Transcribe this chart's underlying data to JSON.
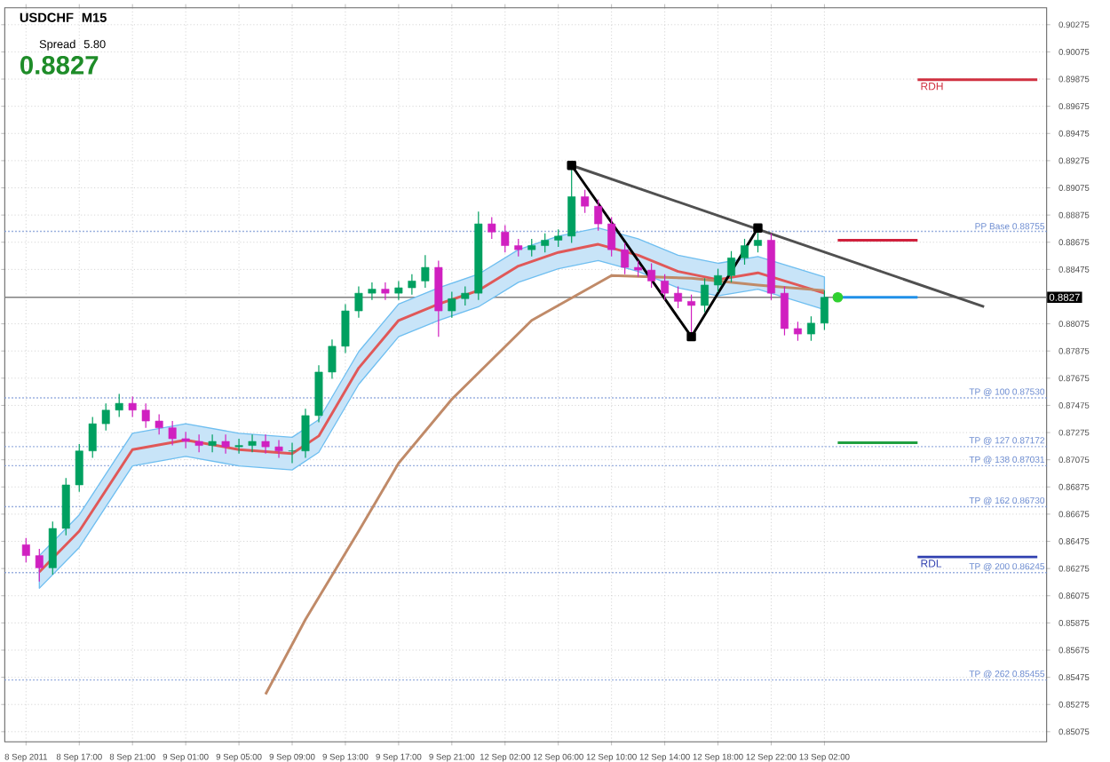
{
  "chart_data": {
    "type": "candlestick",
    "categories": [
      "8 Sep 2011",
      null,
      null,
      null,
      "8 Sep 17:00",
      null,
      null,
      null,
      "8 Sep 21:00",
      null,
      null,
      null,
      "9 Sep 01:00",
      null,
      null,
      null,
      "9 Sep 05:00",
      null,
      null,
      null,
      "9 Sep 09:00",
      null,
      null,
      null,
      "9 Sep 13:00",
      null,
      null,
      null,
      "9 Sep 17:00",
      null,
      null,
      null,
      "9 Sep 21:00",
      null,
      null,
      null,
      "12 Sep 02:00",
      null,
      null,
      null,
      "12 Sep 06:00",
      null,
      null,
      null,
      "12 Sep 10:00",
      null,
      null,
      null,
      "12 Sep 14:00",
      null,
      null,
      null,
      "12 Sep 18:00",
      null,
      null,
      null,
      "12 Sep 22:00",
      null,
      null,
      null,
      "13 Sep 02:00",
      null,
      null,
      null,
      null,
      null,
      null,
      null,
      null,
      null,
      null,
      null,
      null,
      null,
      null,
      null,
      null
    ],
    "ohlc": [
      [
        0.8645,
        0.865,
        0.8632,
        0.8637
      ],
      [
        0.8637,
        0.8642,
        0.8618,
        0.8628
      ],
      [
        0.8628,
        0.8662,
        0.8623,
        0.8657
      ],
      [
        0.8657,
        0.8694,
        0.8652,
        0.8689
      ],
      [
        0.8689,
        0.8719,
        0.8684,
        0.8714
      ],
      [
        0.8714,
        0.8739,
        0.8709,
        0.8734
      ],
      [
        0.8734,
        0.8749,
        0.8729,
        0.8744
      ],
      [
        0.8744,
        0.8756,
        0.8739,
        0.8749
      ],
      [
        0.8749,
        0.8754,
        0.8739,
        0.8744
      ],
      [
        0.8744,
        0.8749,
        0.8731,
        0.8736
      ],
      [
        0.8736,
        0.8741,
        0.8726,
        0.8731
      ],
      [
        0.8731,
        0.8736,
        0.8718,
        0.8723
      ],
      [
        0.8723,
        0.8728,
        0.8716,
        0.8721
      ],
      [
        0.8721,
        0.8726,
        0.8713,
        0.8718
      ],
      [
        0.8718,
        0.8726,
        0.8713,
        0.8721
      ],
      [
        0.8721,
        0.8726,
        0.8712,
        0.8717
      ],
      [
        0.8717,
        0.8723,
        0.8712,
        0.8718
      ],
      [
        0.8718,
        0.8726,
        0.8713,
        0.8721
      ],
      [
        0.8721,
        0.8726,
        0.8712,
        0.8717
      ],
      [
        0.8717,
        0.8722,
        0.8709,
        0.8714
      ],
      [
        0.8714,
        0.872,
        0.8705,
        0.8714
      ],
      [
        0.8714,
        0.8745,
        0.8709,
        0.874
      ],
      [
        0.874,
        0.8777,
        0.8735,
        0.8772
      ],
      [
        0.8772,
        0.8796,
        0.8767,
        0.8791
      ],
      [
        0.8791,
        0.8822,
        0.8786,
        0.8817
      ],
      [
        0.8817,
        0.8835,
        0.8812,
        0.883
      ],
      [
        0.883,
        0.8838,
        0.8825,
        0.8833
      ],
      [
        0.8833,
        0.8838,
        0.8825,
        0.883
      ],
      [
        0.883,
        0.8839,
        0.8825,
        0.8834
      ],
      [
        0.8834,
        0.8844,
        0.8829,
        0.8839
      ],
      [
        0.8839,
        0.8858,
        0.8834,
        0.8849
      ],
      [
        0.8849,
        0.8854,
        0.8798,
        0.8817
      ],
      [
        0.8817,
        0.8831,
        0.8812,
        0.8826
      ],
      [
        0.8826,
        0.8835,
        0.8821,
        0.883
      ],
      [
        0.883,
        0.889,
        0.8825,
        0.8881
      ],
      [
        0.8881,
        0.8886,
        0.887,
        0.8875
      ],
      [
        0.8875,
        0.888,
        0.886,
        0.8865
      ],
      [
        0.8865,
        0.887,
        0.8857,
        0.8862
      ],
      [
        0.8862,
        0.887,
        0.8857,
        0.8865
      ],
      [
        0.8865,
        0.8874,
        0.886,
        0.8869
      ],
      [
        0.8869,
        0.8877,
        0.8864,
        0.8872
      ],
      [
        0.8872,
        0.8924,
        0.8867,
        0.8901
      ],
      [
        0.8901,
        0.8906,
        0.8889,
        0.8894
      ],
      [
        0.8894,
        0.8899,
        0.8876,
        0.8881
      ],
      [
        0.8881,
        0.8886,
        0.8857,
        0.8862
      ],
      [
        0.8862,
        0.8867,
        0.8844,
        0.8849
      ],
      [
        0.8849,
        0.8854,
        0.8842,
        0.8847
      ],
      [
        0.8847,
        0.8852,
        0.8834,
        0.8839
      ],
      [
        0.8839,
        0.8844,
        0.8825,
        0.883
      ],
      [
        0.883,
        0.8835,
        0.8819,
        0.8824
      ],
      [
        0.8824,
        0.8829,
        0.8798,
        0.8821
      ],
      [
        0.8821,
        0.8841,
        0.8816,
        0.8836
      ],
      [
        0.8836,
        0.8848,
        0.8831,
        0.8843
      ],
      [
        0.8843,
        0.8861,
        0.8838,
        0.8856
      ],
      [
        0.8856,
        0.887,
        0.8851,
        0.8865
      ],
      [
        0.8865,
        0.8878,
        0.886,
        0.8869
      ],
      [
        0.8869,
        0.8874,
        0.8825,
        0.883
      ],
      [
        0.883,
        0.8835,
        0.8799,
        0.8804
      ],
      [
        0.8804,
        0.8809,
        0.8795,
        0.88
      ],
      [
        0.88,
        0.8813,
        0.8795,
        0.8808
      ],
      [
        0.8808,
        0.8832,
        0.8803,
        0.8827
      ],
      null,
      null,
      null,
      null,
      null,
      null,
      null,
      null,
      null,
      null,
      null,
      null,
      null,
      null,
      null,
      null
    ],
    "colors": [
      "#d020c0",
      "#d020c0",
      "#00a060",
      "#00a060",
      "#00a060",
      "#00a060",
      "#00a060",
      "#00a060",
      "#d020c0",
      "#d020c0",
      "#d020c0",
      "#d020c0",
      "#d020c0",
      "#d020c0",
      "#00a060",
      "#d020c0",
      "#00a060",
      "#00a060",
      "#d020c0",
      "#d020c0",
      "#00a060",
      "#00a060",
      "#00a060",
      "#00a060",
      "#00a060",
      "#00a060",
      "#00a060",
      "#d020c0",
      "#00a060",
      "#00a060",
      "#00a060",
      "#d020c0",
      "#00a060",
      "#00a060",
      "#00a060",
      "#d020c0",
      "#d020c0",
      "#d020c0",
      "#00a060",
      "#00a060",
      "#00a060",
      "#00a060",
      "#d020c0",
      "#d020c0",
      "#d020c0",
      "#d020c0",
      "#d020c0",
      "#d020c0",
      "#d020c0",
      "#d020c0",
      "#d020c0",
      "#00a060",
      "#00a060",
      "#00a060",
      "#00a060",
      "#00a060",
      "#d020c0",
      "#d020c0",
      "#d020c0",
      "#00a060",
      "#00a060",
      null,
      null,
      null,
      null,
      null,
      null,
      null,
      null,
      null,
      null,
      null,
      null,
      null,
      null,
      null,
      null
    ],
    "series": [
      {
        "type": "line",
        "color": "#c08a68",
        "values": [
          null,
          null,
          null,
          null,
          null,
          null,
          null,
          null,
          null,
          null,
          null,
          null,
          null,
          null,
          null,
          null,
          null,
          null,
          0.8535,
          null,
          null,
          0.859,
          null,
          null,
          null,
          0.8655,
          null,
          null,
          0.8705,
          null,
          null,
          null,
          0.8752,
          null,
          null,
          null,
          null,
          null,
          0.881,
          null,
          null,
          null,
          null,
          null,
          0.8843,
          null,
          null,
          null,
          null,
          null,
          0.8841,
          null,
          null,
          null,
          null,
          0.8836,
          null,
          null,
          null,
          null,
          0.8832,
          null,
          null,
          null,
          null,
          null,
          null,
          null,
          null,
          null,
          null,
          null,
          null,
          null,
          null,
          null,
          null
        ]
      },
      {
        "type": "line",
        "color": "#e05858",
        "values": [
          null,
          0.8625,
          null,
          null,
          0.8655,
          null,
          null,
          null,
          0.8715,
          null,
          null,
          null,
          0.8722,
          null,
          null,
          null,
          0.8715,
          null,
          null,
          null,
          0.8712,
          null,
          0.8725,
          null,
          null,
          0.8775,
          null,
          null,
          0.881,
          null,
          null,
          0.8822,
          null,
          null,
          0.8832,
          null,
          null,
          0.885,
          null,
          null,
          0.886,
          null,
          null,
          0.8866,
          null,
          null,
          0.8858,
          null,
          null,
          0.8846,
          null,
          null,
          0.884,
          null,
          null,
          0.8845,
          null,
          null,
          0.8836,
          null,
          0.883,
          null,
          null,
          null,
          null,
          null,
          null,
          null,
          null,
          null,
          null,
          null,
          null,
          null,
          null,
          null,
          null
        ],
        "lower": [
          null,
          0.8613,
          null,
          null,
          0.8643,
          null,
          null,
          null,
          0.8703,
          null,
          null,
          null,
          0.871,
          null,
          null,
          null,
          0.8703,
          null,
          null,
          null,
          0.87,
          null,
          0.8713,
          null,
          null,
          0.8763,
          null,
          null,
          0.8798,
          null,
          null,
          0.881,
          null,
          null,
          0.882,
          null,
          null,
          0.8838,
          null,
          null,
          0.8848,
          null,
          null,
          0.8854,
          null,
          null,
          0.8846,
          null,
          null,
          0.8834,
          null,
          null,
          0.8828,
          null,
          null,
          0.8833,
          null,
          null,
          0.8824,
          null,
          0.8818,
          null,
          null,
          null,
          null,
          null,
          null,
          null,
          null,
          null,
          null,
          null,
          null,
          null,
          null,
          null,
          null
        ],
        "upper": [
          null,
          0.8637,
          null,
          null,
          0.8667,
          null,
          null,
          null,
          0.8727,
          null,
          null,
          null,
          0.8734,
          null,
          null,
          null,
          0.8727,
          null,
          null,
          null,
          0.8724,
          null,
          0.8737,
          null,
          null,
          0.8787,
          null,
          null,
          0.8822,
          null,
          null,
          0.8834,
          null,
          null,
          0.8844,
          null,
          null,
          0.8862,
          null,
          null,
          0.8872,
          null,
          null,
          0.8878,
          null,
          null,
          0.887,
          null,
          null,
          0.8858,
          null,
          null,
          0.8852,
          null,
          null,
          0.8857,
          null,
          null,
          0.8848,
          null,
          0.8842,
          null,
          null,
          null,
          null,
          null,
          null,
          null,
          null,
          null,
          null,
          null,
          null,
          null,
          null,
          null,
          null
        ]
      },
      {
        "type": "line",
        "color": "#505050",
        "values": [
          null,
          null,
          null,
          null,
          null,
          null,
          null,
          null,
          null,
          null,
          null,
          null,
          null,
          null,
          null,
          null,
          null,
          null,
          null,
          null,
          null,
          null,
          null,
          null,
          null,
          null,
          null,
          null,
          null,
          null,
          null,
          null,
          null,
          null,
          null,
          null,
          null,
          null,
          null,
          null,
          null,
          0.8924,
          null,
          null,
          null,
          null,
          null,
          null,
          null,
          null,
          null,
          null,
          null,
          null,
          null,
          null,
          null,
          null,
          null,
          null,
          null,
          null,
          null,
          null,
          null,
          null,
          null,
          null,
          null,
          null,
          null,
          null,
          0.882,
          null,
          null,
          null,
          null
        ]
      },
      {
        "type": "line",
        "color": "#000000",
        "marker": "square",
        "values": [
          null,
          null,
          null,
          null,
          null,
          null,
          null,
          null,
          null,
          null,
          null,
          null,
          null,
          null,
          null,
          null,
          null,
          null,
          null,
          null,
          null,
          null,
          null,
          null,
          null,
          null,
          null,
          null,
          null,
          null,
          null,
          null,
          null,
          null,
          null,
          null,
          null,
          null,
          null,
          null,
          null,
          0.8924,
          null,
          null,
          null,
          null,
          null,
          null,
          null,
          null,
          0.8798,
          null,
          null,
          null,
          null,
          0.8878,
          null,
          null,
          null,
          null,
          null,
          null,
          null,
          null,
          null,
          null,
          null,
          null,
          null,
          null,
          null,
          null,
          null,
          null,
          null,
          null,
          null
        ]
      },
      {
        "type": "line",
        "color": "#d0203c",
        "values": [
          null,
          null,
          null,
          null,
          null,
          null,
          null,
          null,
          null,
          null,
          null,
          null,
          null,
          null,
          null,
          null,
          null,
          null,
          null,
          null,
          null,
          null,
          null,
          null,
          null,
          null,
          null,
          null,
          null,
          null,
          null,
          null,
          null,
          null,
          null,
          null,
          null,
          null,
          null,
          null,
          null,
          null,
          null,
          null,
          null,
          null,
          null,
          null,
          null,
          null,
          null,
          null,
          null,
          null,
          null,
          null,
          null,
          null,
          null,
          null,
          null,
          0.8869,
          null,
          null,
          null,
          null,
          null,
          0.8869,
          null,
          null,
          null,
          null,
          null,
          null,
          null,
          null,
          null
        ]
      },
      {
        "type": "line",
        "color": "#2090e8",
        "values": [
          null,
          null,
          null,
          null,
          null,
          null,
          null,
          null,
          null,
          null,
          null,
          null,
          null,
          null,
          null,
          null,
          null,
          null,
          null,
          null,
          null,
          null,
          null,
          null,
          null,
          null,
          null,
          null,
          null,
          null,
          null,
          null,
          null,
          null,
          null,
          null,
          null,
          null,
          null,
          null,
          null,
          null,
          null,
          null,
          null,
          null,
          null,
          null,
          null,
          null,
          null,
          null,
          null,
          null,
          null,
          null,
          null,
          null,
          null,
          null,
          null,
          0.8827,
          null,
          null,
          null,
          null,
          null,
          0.8827,
          null,
          null,
          null,
          null,
          null,
          null,
          null,
          null,
          null
        ]
      },
      {
        "type": "line",
        "color": "#20a040",
        "values": [
          null,
          null,
          null,
          null,
          null,
          null,
          null,
          null,
          null,
          null,
          null,
          null,
          null,
          null,
          null,
          null,
          null,
          null,
          null,
          null,
          null,
          null,
          null,
          null,
          null,
          null,
          null,
          null,
          null,
          null,
          null,
          null,
          null,
          null,
          null,
          null,
          null,
          null,
          null,
          null,
          null,
          null,
          null,
          null,
          null,
          null,
          null,
          null,
          null,
          null,
          null,
          null,
          null,
          null,
          null,
          null,
          null,
          null,
          null,
          null,
          null,
          0.872,
          null,
          null,
          null,
          null,
          null,
          0.872,
          null,
          null,
          null,
          null,
          null,
          null,
          null,
          null,
          null
        ]
      },
      {
        "type": "scatter",
        "color": "#30d030",
        "marker": "circle",
        "values": [
          null,
          null,
          null,
          null,
          null,
          null,
          null,
          null,
          null,
          null,
          null,
          null,
          null,
          null,
          null,
          null,
          null,
          null,
          null,
          null,
          null,
          null,
          null,
          null,
          null,
          null,
          null,
          null,
          null,
          null,
          null,
          null,
          null,
          null,
          null,
          null,
          null,
          null,
          null,
          null,
          null,
          null,
          null,
          null,
          null,
          null,
          null,
          null,
          null,
          null,
          null,
          null,
          null,
          null,
          null,
          null,
          null,
          null,
          null,
          null,
          null,
          0.8827,
          null,
          null,
          null,
          null,
          null,
          null,
          null,
          null,
          null,
          null,
          null,
          null,
          null,
          null,
          null
        ]
      },
      {
        "type": "line",
        "name": "RDH",
        "color": "#d03040",
        "values": [
          null,
          null,
          null,
          null,
          null,
          null,
          null,
          null,
          null,
          null,
          null,
          null,
          null,
          null,
          null,
          null,
          null,
          null,
          null,
          null,
          null,
          null,
          null,
          null,
          null,
          null,
          null,
          null,
          null,
          null,
          null,
          null,
          null,
          null,
          null,
          null,
          null,
          null,
          null,
          null,
          null,
          null,
          null,
          null,
          null,
          null,
          null,
          null,
          null,
          null,
          null,
          null,
          null,
          null,
          null,
          null,
          null,
          null,
          null,
          null,
          null,
          null,
          null,
          null,
          null,
          null,
          null,
          0.8987,
          null,
          null,
          null,
          null,
          null,
          null,
          null,
          null,
          0.8987
        ]
      },
      {
        "type": "line",
        "name": "RDL",
        "color": "#3040b0",
        "values": [
          null,
          null,
          null,
          null,
          null,
          null,
          null,
          null,
          null,
          null,
          null,
          null,
          null,
          null,
          null,
          null,
          null,
          null,
          null,
          null,
          null,
          null,
          null,
          null,
          null,
          null,
          null,
          null,
          null,
          null,
          null,
          null,
          null,
          null,
          null,
          null,
          null,
          null,
          null,
          null,
          null,
          null,
          null,
          null,
          null,
          null,
          null,
          null,
          null,
          null,
          null,
          null,
          null,
          null,
          null,
          null,
          null,
          null,
          null,
          null,
          null,
          null,
          null,
          null,
          null,
          null,
          null,
          0.8636,
          null,
          null,
          null,
          null,
          null,
          null,
          null,
          null,
          0.8636
        ]
      }
    ],
    "ylim": [
      0.85,
      0.904
    ],
    "yticks": [
      0.85075,
      0.85275,
      0.85475,
      0.85675,
      0.85875,
      0.86075,
      0.86275,
      0.86475,
      0.86675,
      0.86875,
      0.87075,
      0.87275,
      0.87475,
      0.87675,
      0.87875,
      0.88075,
      0.88475,
      0.88675,
      0.88875,
      0.89075,
      0.89275,
      0.89475,
      0.89675,
      0.89875,
      0.90075,
      0.90275
    ],
    "grid": true,
    "ref_lines": [
      {
        "axis": "y",
        "value": 0.8827,
        "color": "#808080",
        "line_style": "solid"
      },
      {
        "axis": "y",
        "value": 0.88755,
        "label": "PP Base  0.88755",
        "color": "#6a8ad0",
        "line_style": "dotted"
      },
      {
        "axis": "y",
        "value": 0.8753,
        "label": "TP @ 100  0.87530",
        "color": "#6a8ad0",
        "line_style": "dotted"
      },
      {
        "axis": "y",
        "value": 0.87172,
        "label": "TP @ 127  0.87172",
        "color": "#6a8ad0",
        "line_style": "dotted"
      },
      {
        "axis": "y",
        "value": 0.87031,
        "label": "TP @ 138  0.87031",
        "color": "#6a8ad0",
        "line_style": "dotted"
      },
      {
        "axis": "y",
        "value": 0.8673,
        "label": "TP @ 162  0.86730",
        "color": "#6a8ad0",
        "line_style": "dotted"
      },
      {
        "axis": "y",
        "value": 0.86245,
        "label": "TP @ 200  0.86245",
        "color": "#6a8ad0",
        "line_style": "dotted"
      },
      {
        "axis": "y",
        "value": 0.85455,
        "label": "TP @ 262  0.85455",
        "color": "#6a8ad0",
        "line_style": "dotted"
      }
    ],
    "annotations": [
      "USDCHF   M15",
      "Spread   5.80",
      "0.8827",
      {
        "text": "0.8827",
        "y": 0.8827
      }
    ]
  }
}
